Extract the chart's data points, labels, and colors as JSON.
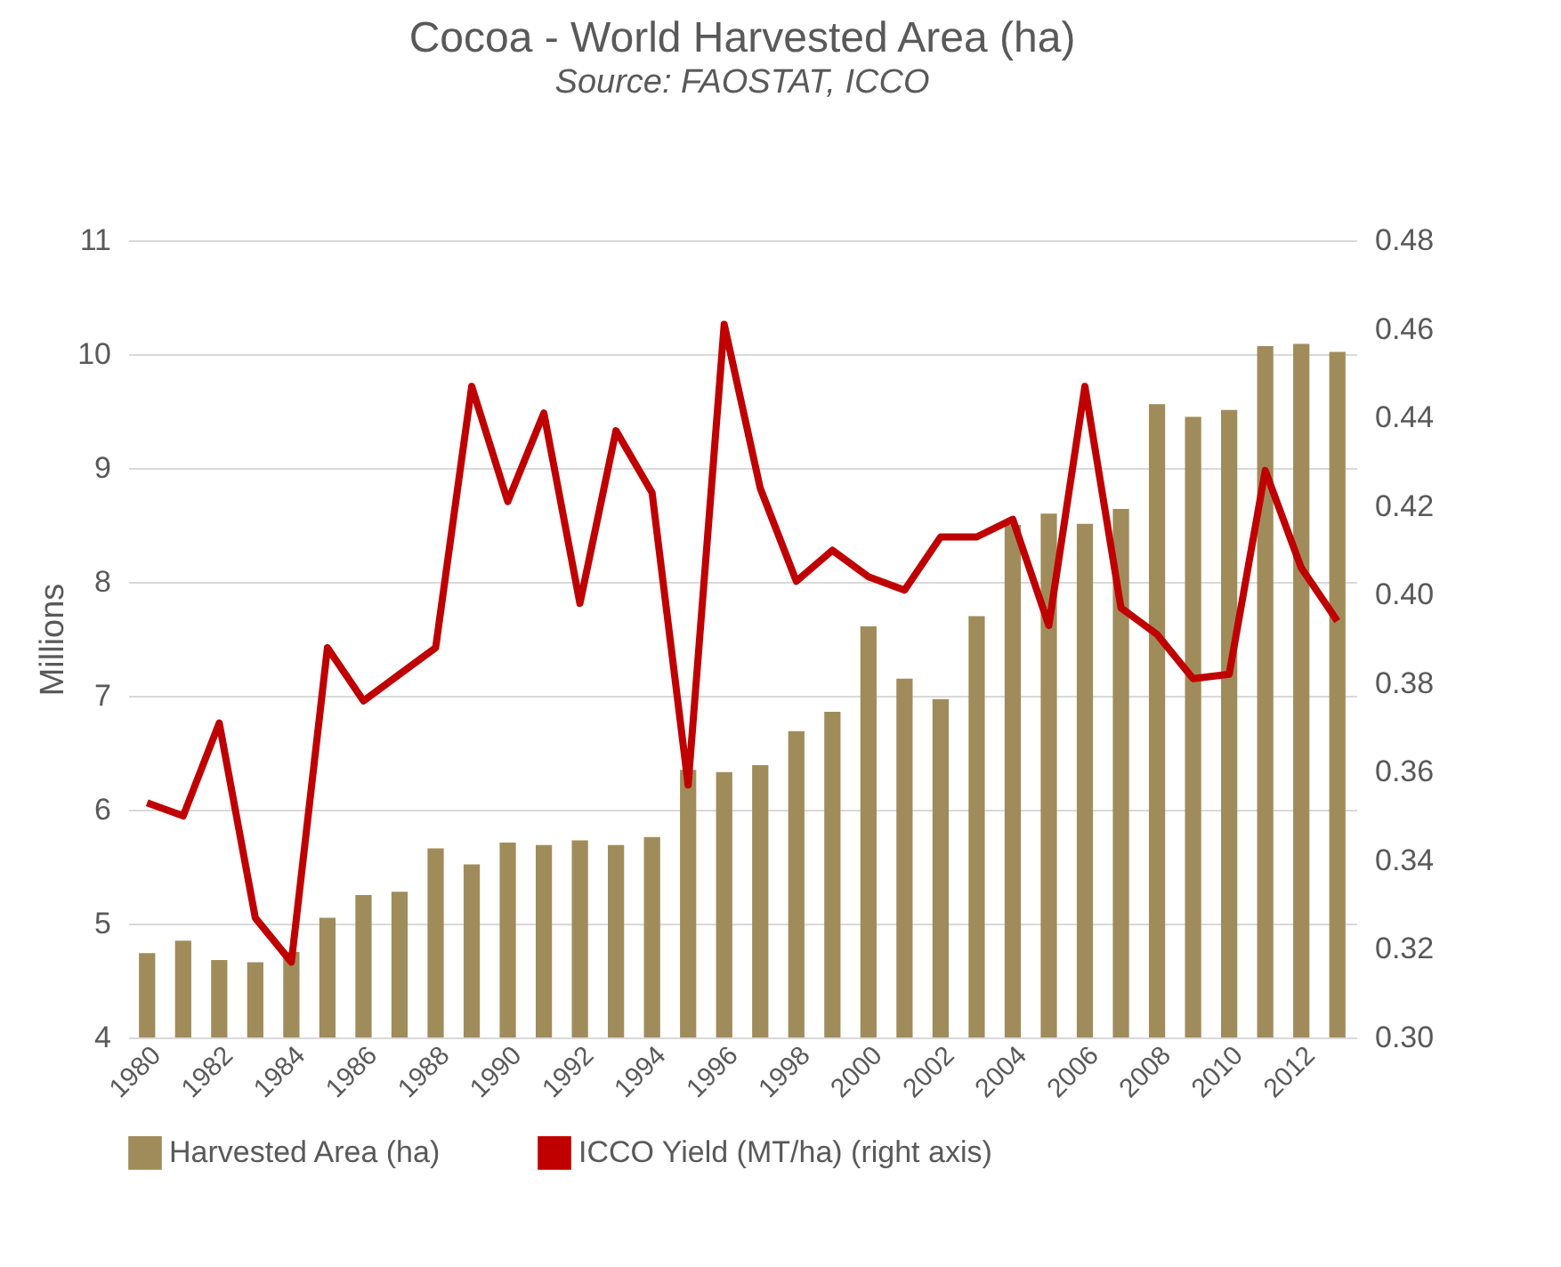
{
  "chart_data": {
    "type": "bar",
    "title": "Cocoa - World Harvested Area (ha)",
    "subtitle": "Source: FAOSTAT, ICCO",
    "ylabel": "Millions",
    "categories": [
      "1980",
      null,
      "1982",
      null,
      "1984",
      null,
      "1986",
      null,
      "1988",
      null,
      "1990",
      null,
      "1992",
      null,
      "1994",
      null,
      "1996",
      null,
      "1998",
      null,
      "2000",
      null,
      "2002",
      null,
      "2004",
      null,
      "2006",
      null,
      "2008",
      null,
      "2010",
      null,
      "2012",
      null
    ],
    "series": [
      {
        "name": "Harvested Area (ha)",
        "color": "#a08c5b",
        "values": [
          4.74,
          4.85,
          4.68,
          4.66,
          4.75,
          5.05,
          5.25,
          5.28,
          5.66,
          5.52,
          5.71,
          5.69,
          5.73,
          5.69,
          5.76,
          6.35,
          6.33,
          6.39,
          6.69,
          6.86,
          7.61,
          7.15,
          6.97,
          7.7,
          8.5,
          8.6,
          8.51,
          8.64,
          9.56,
          9.45,
          9.51,
          10.07,
          10.09,
          10.02
        ]
      },
      {
        "name": "ICCO Yield (MT/ha) (right axis)",
        "type": "line",
        "axis": "y2",
        "color": "#c00000",
        "values": [
          0.353,
          0.35,
          0.371,
          0.327,
          0.317,
          0.388,
          0.376,
          0.382,
          0.388,
          0.447,
          0.421,
          0.441,
          0.398,
          0.437,
          0.423,
          0.357,
          0.461,
          0.424,
          0.403,
          0.41,
          0.404,
          0.401,
          0.413,
          0.413,
          0.417,
          0.393,
          0.447,
          0.397,
          0.391,
          0.381,
          0.382,
          0.428,
          0.406,
          0.394
        ]
      }
    ],
    "ylim": [
      4,
      11
    ],
    "yticks": [
      4,
      5,
      6,
      7,
      8,
      9,
      10,
      11
    ],
    "y2lim": [
      0.3,
      0.48
    ],
    "y2ticks": [
      {
        "value": 0.3,
        "label": "0.30"
      },
      {
        "value": 0.32,
        "label": "0.32"
      },
      {
        "value": 0.34,
        "label": "0.34"
      },
      {
        "value": 0.36,
        "label": "0.36"
      },
      {
        "value": 0.38,
        "label": "0.38"
      },
      {
        "value": 0.4,
        "label": "0.40"
      },
      {
        "value": 0.42,
        "label": "0.42"
      },
      {
        "value": 0.44,
        "label": "0.44"
      },
      {
        "value": 0.46,
        "label": "0.46"
      },
      {
        "value": 0.48,
        "label": "0.48"
      }
    ],
    "grid": "y",
    "legend": "bottom",
    "marker": "none",
    "line_style": "solid"
  }
}
